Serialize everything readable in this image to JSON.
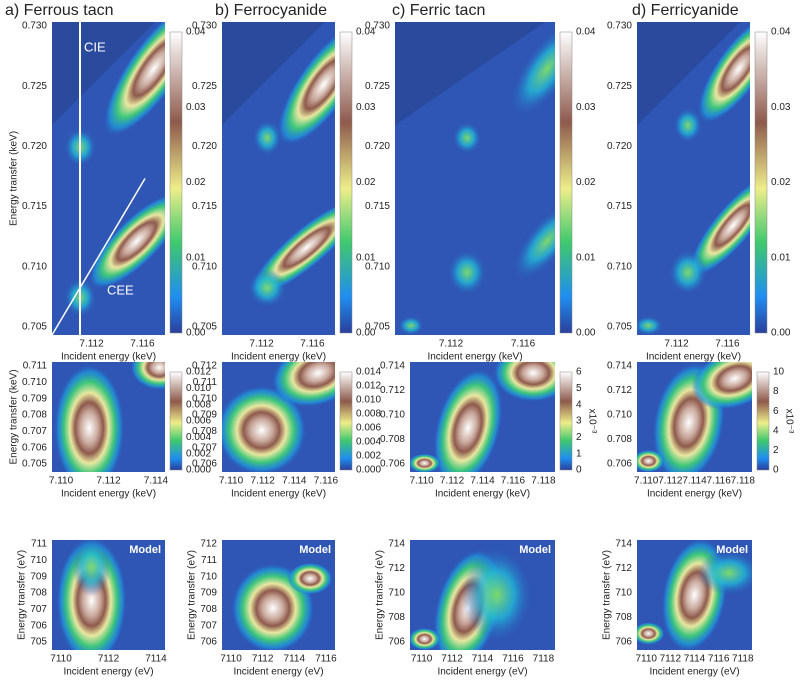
{
  "rows": [
    {
      "panels": [
        {
          "title": "a) Ferrous tacn",
          "ylabel": "Energy transfer  (keV)",
          "xlabel": "Incident energy (keV)",
          "yticks": [
            "0.730",
            "0.725",
            "0.720",
            "0.715",
            "0.710",
            "0.705"
          ],
          "xticks": [
            "7.112",
            "7.116"
          ],
          "cbar": [
            "0.04",
            "0.03",
            "0.02",
            "0.01",
            "0.00"
          ],
          "notes": [
            "CIE",
            "CEE"
          ]
        },
        {
          "title": "b) Ferrocyanide",
          "xlabel": "Incident energy (keV)",
          "yticks": [
            "0.730",
            "0.725",
            "0.720",
            "0.715",
            "0.710",
            "0.705"
          ],
          "xticks": [
            "7.112",
            "7.116"
          ],
          "cbar": [
            "0.04",
            "0.03",
            "0.02",
            "0.01",
            "0.00"
          ]
        },
        {
          "title": "c) Ferric tacn",
          "xlabel": "Incident energy (keV)",
          "yticks": [
            "0.730",
            "0.725",
            "0.720",
            "0.715",
            "0.710",
            "0.705"
          ],
          "xticks": [
            "7.112",
            "7.116"
          ],
          "cbar": [
            "0.04",
            "0.03",
            "0.02",
            "0.01",
            "0.00"
          ]
        },
        {
          "title": "d) Ferricyanide",
          "xlabel": "Incident energy (keV)",
          "yticks": [
            "0.730",
            "0.725",
            "0.720",
            "0.715",
            "0.710",
            "0.705"
          ],
          "xticks": [
            "7.112",
            "7.116"
          ],
          "cbar": [
            "0.04",
            "0.03",
            "0.02",
            "0.01",
            "0.00"
          ]
        }
      ]
    },
    {
      "panels": [
        {
          "ylabel": "Energy transfer  (keV)",
          "xlabel": "Incident energy (keV)",
          "yticks": [
            "0.711",
            "0.710",
            "0.709",
            "0.708",
            "0.707",
            "0.706",
            "0.705"
          ],
          "xticks": [
            "7.110",
            "7.112",
            "7.114"
          ],
          "cbar": [
            "0.012",
            "0.010",
            "0.008",
            "0.006",
            "0.004",
            "0.002",
            "0.000"
          ]
        },
        {
          "xlabel": "Incident energy (keV)",
          "yticks": [
            "0.712",
            "0.711",
            "0.710",
            "0.709",
            "0.708",
            "0.707",
            "0.706"
          ],
          "xticks": [
            "7.110",
            "7.112",
            "7.114",
            "7.116"
          ],
          "cbar": [
            "0.014",
            "0.012",
            "0.010",
            "0.008",
            "0.006",
            "0.004",
            "0.002",
            "0.000"
          ]
        },
        {
          "xlabel": "Incident energy (keV)",
          "yticks": [
            "0.714",
            "0.712",
            "0.710",
            "0.708",
            "0.706"
          ],
          "xticks": [
            "7.110",
            "7.112",
            "7.114",
            "7.116",
            "7.118"
          ],
          "cbar": [
            "6",
            "5",
            "4",
            "3",
            "2",
            "1",
            "0"
          ],
          "cbar_label": "x10⁻³"
        },
        {
          "xlabel": "Incident energy (keV)",
          "yticks": [
            "0.714",
            "0.712",
            "0.710",
            "0.708",
            "0.706"
          ],
          "xticks": [
            "7.110",
            "7.112",
            "7.114",
            "7.116",
            "7.118"
          ],
          "cbar": [
            "10",
            "8",
            "6",
            "4",
            "2",
            "0"
          ],
          "cbar_label": "x10⁻³"
        }
      ]
    },
    {
      "panels": [
        {
          "ylabel": "Energy transfer  (eV)",
          "xlabel": "Incident energy (eV)",
          "yticks": [
            "711",
            "710",
            "709",
            "708",
            "707",
            "706",
            "705"
          ],
          "xticks": [
            "7110",
            "7112",
            "7114"
          ],
          "notes": [
            "Model"
          ]
        },
        {
          "ylabel": "Energy transfer  (eV)",
          "xlabel": "Incident energy (eV)",
          "yticks": [
            "712",
            "711",
            "710",
            "709",
            "708",
            "707",
            "706"
          ],
          "xticks": [
            "7110",
            "7112",
            "7114",
            "7116"
          ],
          "notes": [
            "Model"
          ]
        },
        {
          "ylabel": "Energy transfer  (eV)",
          "xlabel": "Incident energy (eV)",
          "yticks": [
            "714",
            "712",
            "710",
            "708",
            "706"
          ],
          "xticks": [
            "7110",
            "7112",
            "7114",
            "7116",
            "7118"
          ],
          "notes": [
            "Model"
          ]
        },
        {
          "ylabel": "Energy transfer  (eV)",
          "xlabel": "Incident energy (eV)",
          "yticks": [
            "714",
            "712",
            "710",
            "708",
            "706"
          ],
          "xticks": [
            "7110",
            "7112",
            "7114",
            "7116",
            "7118"
          ],
          "notes": [
            "Model"
          ]
        }
      ]
    }
  ]
}
